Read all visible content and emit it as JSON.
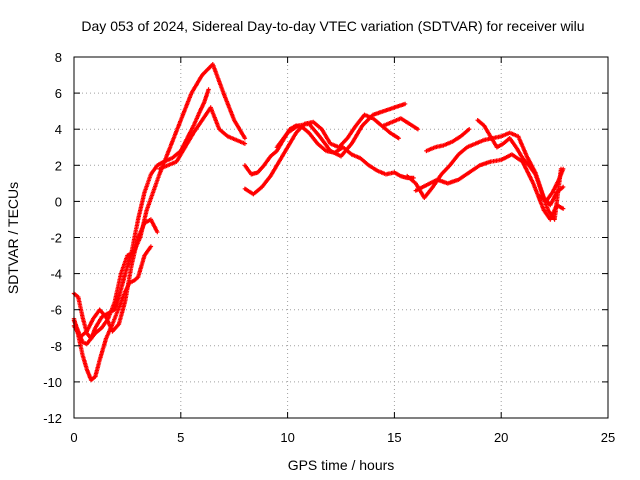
{
  "chart_data": {
    "type": "scatter",
    "title": "Day 053 of 2024, Sidereal Day-to-day VTEC variation (SDTVAR) for receiver wilu",
    "xlabel": "GPS time / hours",
    "ylabel": "SDTVAR / TECUs",
    "xlim": [
      0,
      25
    ],
    "ylim": [
      -12,
      8
    ],
    "xticks": [
      "0",
      "5",
      "10",
      "15",
      "20",
      "25"
    ],
    "yticks": [
      "-12",
      "-10",
      "-8",
      "-6",
      "-4",
      "-2",
      "0",
      "2",
      "4",
      "6",
      "8"
    ],
    "grid": true,
    "marker": "plus",
    "color": "#ff0000",
    "series": [
      {
        "x": [
          0.0,
          0.2,
          0.4,
          0.6,
          0.8,
          1.0,
          1.3,
          1.6,
          1.9,
          2.1,
          2.4,
          2.7,
          3.0,
          3.3,
          3.6,
          3.9,
          4.2,
          4.6,
          5.0,
          5.3,
          5.6,
          5.9,
          6.1,
          6.3
        ],
        "y": [
          -6.6,
          -7.2,
          -7.8,
          -7.9,
          -7.6,
          -7.0,
          -6.4,
          -6.2,
          -6.0,
          -5.3,
          -4.0,
          -2.8,
          -1.0,
          0.5,
          1.5,
          2.0,
          2.2,
          2.4,
          2.8,
          3.5,
          4.2,
          5.0,
          5.5,
          6.2
        ]
      },
      {
        "x": [
          0.0,
          0.2,
          0.4,
          0.6,
          0.8,
          1.0,
          1.2,
          1.5,
          1.8,
          2.1,
          2.4,
          2.6,
          2.8,
          3.0,
          3.3,
          3.6
        ],
        "y": [
          -6.5,
          -7.4,
          -8.5,
          -9.3,
          -9.9,
          -9.7,
          -8.8,
          -7.6,
          -6.8,
          -5.9,
          -5.0,
          -4.5,
          -4.4,
          -4.2,
          -3.0,
          -2.5
        ]
      },
      {
        "x": [
          0.0,
          0.2,
          0.4,
          0.6,
          0.8,
          1.0,
          1.3,
          1.6,
          1.9,
          2.2,
          2.5,
          2.8,
          3.1,
          3.4,
          3.7,
          4.0,
          4.5,
          5.0,
          5.5,
          6.0,
          6.5,
          7.0,
          7.5,
          8.0
        ],
        "y": [
          -5.1,
          -5.3,
          -6.4,
          -7.3,
          -7.6,
          -7.3,
          -7.0,
          -6.5,
          -5.6,
          -4.0,
          -3.0,
          -2.8,
          -2.0,
          -0.5,
          0.5,
          1.5,
          3.0,
          4.5,
          6.0,
          7.0,
          7.6,
          6.0,
          4.5,
          3.5
        ]
      },
      {
        "x": [
          0.0,
          0.3,
          0.6,
          0.9,
          1.2,
          1.5,
          1.8,
          2.1,
          2.4,
          2.7,
          3.0,
          3.3,
          3.6,
          3.9
        ],
        "y": [
          -6.9,
          -7.5,
          -7.2,
          -6.5,
          -6.0,
          -6.4,
          -7.2,
          -6.8,
          -5.5,
          -3.5,
          -2.0,
          -1.2,
          -1.0,
          -1.7
        ]
      },
      {
        "x": [
          4.0,
          4.4,
          4.8,
          5.2,
          5.6,
          6.0,
          6.4,
          6.8,
          7.2,
          7.6,
          8.0
        ],
        "y": [
          1.8,
          2.0,
          2.2,
          3.0,
          3.8,
          4.5,
          5.2,
          4.0,
          3.6,
          3.4,
          3.2
        ]
      },
      {
        "x": [
          8.0,
          8.3,
          8.6,
          8.9,
          9.2,
          9.5,
          9.8,
          10.1,
          10.4,
          10.7,
          11.0,
          11.4,
          11.8,
          12.2,
          12.6,
          13.0,
          13.4,
          13.8,
          14.2,
          14.6,
          15.0,
          15.3,
          15.6,
          15.9
        ],
        "y": [
          2.0,
          1.5,
          1.6,
          2.0,
          2.5,
          2.8,
          3.4,
          4.0,
          4.2,
          4.1,
          3.8,
          3.2,
          2.8,
          2.7,
          3.0,
          2.6,
          2.4,
          2.0,
          1.7,
          1.5,
          1.6,
          1.4,
          1.3,
          1.3
        ]
      },
      {
        "x": [
          8.0,
          8.4,
          8.8,
          9.2,
          9.6,
          10.0,
          10.4,
          10.8,
          11.2,
          11.6,
          12.0,
          12.4,
          12.8,
          13.2,
          13.6,
          14.0,
          14.4,
          14.8,
          15.2
        ],
        "y": [
          0.7,
          0.4,
          0.8,
          1.4,
          2.2,
          3.0,
          3.8,
          4.3,
          4.4,
          4.0,
          3.2,
          3.0,
          3.5,
          4.2,
          4.8,
          4.6,
          4.2,
          3.8,
          3.5
        ]
      },
      {
        "x": [
          9.5,
          10.0,
          10.5,
          11.0,
          11.5,
          12.0,
          12.5,
          13.0,
          13.5,
          14.0,
          14.5,
          15.0,
          15.5
        ],
        "y": [
          3.0,
          3.8,
          4.2,
          4.3,
          3.6,
          2.8,
          2.5,
          3.2,
          4.2,
          4.8,
          5.0,
          5.2,
          5.4
        ]
      },
      {
        "x": [
          14.5,
          14.9,
          15.3,
          15.7,
          16.1
        ],
        "y": [
          4.2,
          4.4,
          4.6,
          4.3,
          4.0
        ]
      },
      {
        "x": [
          15.6,
          16.0,
          16.4,
          16.8,
          17.2,
          17.6,
          18.0,
          18.4,
          18.8,
          19.2,
          19.6,
          20.0,
          20.4,
          20.8,
          21.2,
          21.6,
          22.0,
          22.3,
          22.6,
          22.9
        ],
        "y": [
          1.4,
          1.0,
          0.2,
          0.8,
          1.5,
          2.0,
          2.6,
          3.0,
          3.2,
          3.4,
          3.5,
          3.6,
          3.8,
          3.6,
          2.5,
          1.6,
          0.2,
          -0.2,
          0.5,
          0.8
        ]
      },
      {
        "x": [
          16.0,
          16.5,
          17.0,
          17.5,
          18.0,
          18.5,
          19.0,
          19.5,
          20.0,
          20.5,
          21.0,
          21.5,
          22.0,
          22.3,
          22.6,
          22.9
        ],
        "y": [
          0.6,
          0.9,
          1.2,
          1.0,
          1.2,
          1.6,
          2.0,
          2.2,
          2.3,
          2.6,
          2.2,
          1.0,
          -0.5,
          -1.0,
          -0.2,
          -0.4
        ]
      },
      {
        "x": [
          16.5,
          16.9,
          17.3,
          17.7,
          18.1,
          18.5
        ],
        "y": [
          2.8,
          3.0,
          3.1,
          3.3,
          3.6,
          4.0
        ]
      },
      {
        "x": [
          18.9,
          19.2,
          19.5,
          19.8,
          20.1,
          20.4,
          20.7,
          21.0,
          21.3,
          21.6,
          21.9,
          22.2,
          22.5,
          22.8
        ],
        "y": [
          4.5,
          4.2,
          3.6,
          3.0,
          3.2,
          3.5,
          3.0,
          2.4,
          2.0,
          1.5,
          0.5,
          -0.5,
          -1.0,
          1.8
        ]
      },
      {
        "x": [
          21.8,
          22.1,
          22.4,
          22.7,
          22.9
        ],
        "y": [
          0.3,
          0.0,
          0.5,
          1.2,
          1.8
        ]
      }
    ]
  }
}
